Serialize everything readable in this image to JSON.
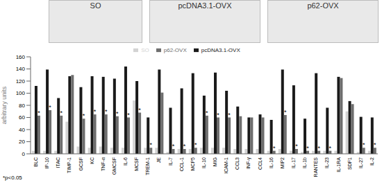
{
  "chart_data": {
    "type": "bar",
    "panels": [
      "SO",
      "pcDNA3.1-OVX",
      "p62-OVX"
    ],
    "y_label": "arbitrary units",
    "footnote": "*p<0.05",
    "significance_mark": "*",
    "significant": [
      "BLC",
      "IP-10",
      "ITAC",
      "GCSF",
      "KC",
      "TNF-α",
      "GMCSF",
      "IL-6",
      "MCSF",
      "TREM-1",
      "IL-7",
      "CCL-1",
      "MCP5",
      "IL-10",
      "MIG",
      "ICAM-1",
      "IL-16",
      "MIP2",
      "IL-17",
      "IL-1b",
      "RANTES",
      "IL-23",
      "IL-27",
      "IL-2"
    ],
    "categories": [
      "BLC",
      "IP-10",
      "ITAC",
      "TIMP-1",
      "GCSF",
      "KC",
      "TNF-α",
      "GMCSF",
      "IL-6",
      "MCSF",
      "TREM-1",
      "JE",
      "IL-7",
      "CCL-1",
      "MCP5",
      "IL-10",
      "MIG",
      "ICAM-1",
      "CCL3",
      "INF-γ",
      "CCL4",
      "IL-16",
      "MIP2",
      "IL-17",
      "IL-1b",
      "RANTES",
      "IL-23",
      "IL-1RA",
      "SDF1",
      "IL-27",
      "IL-2"
    ],
    "series": [
      {
        "name": "SO",
        "color": "#d3d3d3",
        "values": [
          5,
          5,
          5,
          53,
          12,
          10,
          12,
          10,
          10,
          88,
          10,
          10,
          3,
          8,
          8,
          10,
          10,
          10,
          8,
          8,
          8,
          5,
          8,
          5,
          3,
          5,
          5,
          5,
          70,
          3,
          5
        ]
      },
      {
        "name": "pcDNA3.1-OVX",
        "color": "#1a1a1a",
        "values": [
          112,
          139,
          92,
          128,
          110,
          128,
          127,
          124,
          144,
          120,
          60,
          139,
          76,
          108,
          133,
          96,
          134,
          104,
          78,
          60,
          65,
          56,
          139,
          113,
          58,
          133,
          76,
          127,
          87,
          61,
          60
        ]
      },
      {
        "name": "p62-OVX",
        "color": "#6e6e6e",
        "values": [
          63,
          72,
          63,
          130,
          58,
          65,
          65,
          62,
          60,
          68,
          10,
          101,
          8,
          8,
          10,
          63,
          60,
          60,
          62,
          60,
          60,
          5,
          64,
          8,
          5,
          5,
          5,
          125,
          82,
          10,
          10
        ]
      }
    ],
    "ylim": [
      0,
      160
    ],
    "yticks": [
      0,
      20,
      40,
      60,
      80,
      100,
      120,
      140,
      160
    ],
    "grid": false,
    "legend": "top"
  }
}
